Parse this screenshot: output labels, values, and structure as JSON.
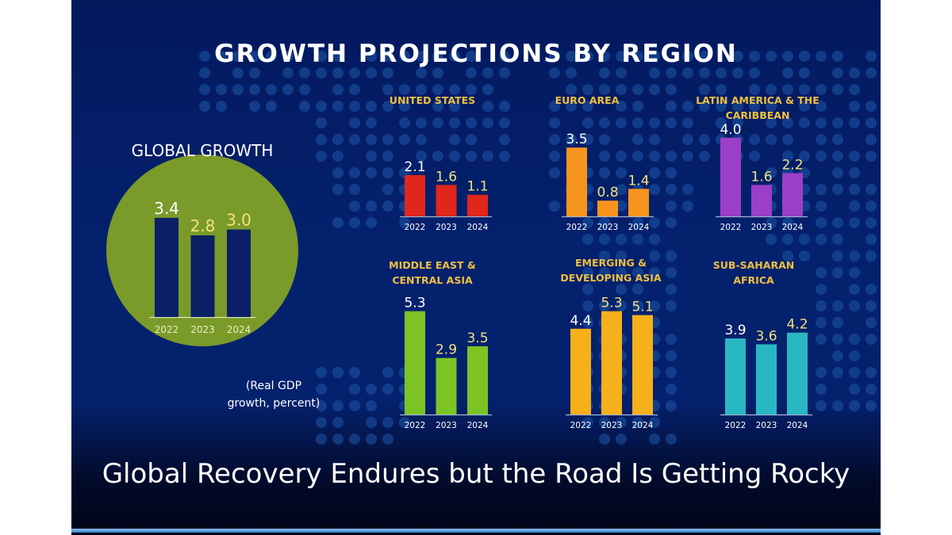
{
  "page": {
    "title": "GROWTH PROJECTIONS BY REGION",
    "caption": "Global Recovery Endures but the Road Is Getting Rocky",
    "note_line1": "(Real GDP",
    "note_line2": "growth, percent)"
  },
  "colors": {
    "background": "#04216e",
    "title_text": "#ffffff",
    "region_title": "#f0c040",
    "global_circle": "#7a9a2a",
    "global_bar": "#0a1f66",
    "value_white": "#ffffff",
    "value_yellow": "#f2e27a",
    "year_label": "#e8efc0"
  },
  "chart_data": [
    {
      "type": "bar",
      "title": "GLOBAL GROWTH",
      "categories": [
        "2022",
        "2023",
        "2024"
      ],
      "values": [
        3.4,
        2.8,
        3.0
      ],
      "value_labels": [
        "3.4",
        "2.8",
        "3.0"
      ],
      "color": "#0a1f66",
      "ylabel": "Real GDP growth, percent"
    },
    {
      "type": "bar",
      "title": "UNITED STATES",
      "categories": [
        "2022",
        "2023",
        "2024"
      ],
      "values": [
        2.1,
        1.6,
        1.1
      ],
      "value_labels": [
        "2.1",
        "1.6",
        "1.1"
      ],
      "color": "#e1261c"
    },
    {
      "type": "bar",
      "title": "EURO AREA",
      "categories": [
        "2022",
        "2023",
        "2024"
      ],
      "values": [
        3.5,
        0.8,
        1.4
      ],
      "value_labels": [
        "3.5",
        "0.8",
        "1.4"
      ],
      "color": "#f7941d"
    },
    {
      "type": "bar",
      "title": "LATIN AMERICA & THE CARIBBEAN",
      "title_lines": [
        "LATIN AMERICA & THE",
        "CARIBBEAN"
      ],
      "categories": [
        "2022",
        "2023",
        "2024"
      ],
      "values": [
        4.0,
        1.6,
        2.2
      ],
      "value_labels": [
        "4.0",
        "1.6",
        "2.2"
      ],
      "color": "#9b3fc8"
    },
    {
      "type": "bar",
      "title": "MIDDLE EAST & CENTRAL ASIA",
      "title_lines": [
        "MIDDLE EAST &",
        "CENTRAL ASIA"
      ],
      "categories": [
        "2022",
        "2023",
        "2024"
      ],
      "values": [
        5.3,
        2.9,
        3.5
      ],
      "value_labels": [
        "5.3",
        "2.9",
        "3.5"
      ],
      "color": "#7cc424"
    },
    {
      "type": "bar",
      "title": "EMERGING & DEVELOPING ASIA",
      "title_lines": [
        "EMERGING &",
        "DEVELOPING ASIA"
      ],
      "categories": [
        "2022",
        "2023",
        "2024"
      ],
      "values": [
        4.4,
        5.3,
        5.1
      ],
      "value_labels": [
        "4.4",
        "5.3",
        "5.1"
      ],
      "color": "#f5b01a"
    },
    {
      "type": "bar",
      "title": "SUB-SAHARAN AFRICA",
      "title_lines": [
        "SUB-SAHARAN",
        "AFRICA"
      ],
      "categories": [
        "2022",
        "2023",
        "2024"
      ],
      "values": [
        3.9,
        3.6,
        4.2
      ],
      "value_labels": [
        "3.9",
        "3.6",
        "4.2"
      ],
      "color": "#29b7c4"
    }
  ]
}
